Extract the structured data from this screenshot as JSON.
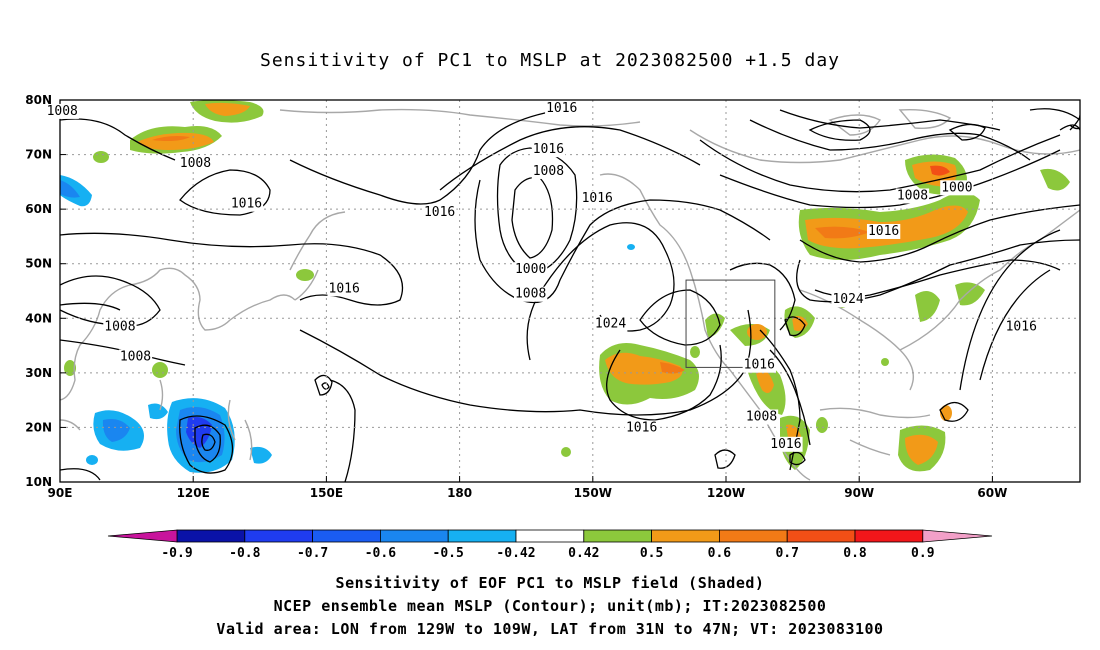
{
  "title": "Sensitivity of PC1 to MSLP at 2023082500 +1.5 day",
  "map": {
    "lat_labels": [
      "80N",
      "70N",
      "60N",
      "50N",
      "40N",
      "30N",
      "20N",
      "10N"
    ],
    "lon_labels": [
      "90E",
      "120E",
      "150E",
      "180",
      "150W",
      "120W",
      "90W",
      "60W"
    ],
    "valid_box_label": "",
    "contour_labels": [
      {
        "text": "1008",
        "lon": 90.5,
        "lat": 78
      },
      {
        "text": "1008",
        "lon": 120.5,
        "lat": 68.5
      },
      {
        "text": "1016",
        "lon": 132,
        "lat": 61
      },
      {
        "text": "1016",
        "lon": 154,
        "lat": 45.5
      },
      {
        "text": "1008",
        "lon": 103.5,
        "lat": 38.5
      },
      {
        "text": "1008",
        "lon": 107,
        "lat": 33
      },
      {
        "text": "1016",
        "lon": -157,
        "lat": 78.5
      },
      {
        "text": "1016",
        "lon": -160,
        "lat": 71
      },
      {
        "text": "1008",
        "lon": -160,
        "lat": 67
      },
      {
        "text": "1016",
        "lon": 175.5,
        "lat": 59.5
      },
      {
        "text": "1016",
        "lon": -149,
        "lat": 62
      },
      {
        "text": "1000",
        "lon": -164,
        "lat": 49
      },
      {
        "text": "1008",
        "lon": -164,
        "lat": 44.5
      },
      {
        "text": "1024",
        "lon": -146,
        "lat": 39
      },
      {
        "text": "1016",
        "lon": -139,
        "lat": 20
      },
      {
        "text": "1016",
        "lon": -112.5,
        "lat": 31.5
      },
      {
        "text": "1008",
        "lon": -112,
        "lat": 22
      },
      {
        "text": "1016",
        "lon": -106.5,
        "lat": 17
      },
      {
        "text": "1008",
        "lon": -78,
        "lat": 62.5
      },
      {
        "text": "1000",
        "lon": -68,
        "lat": 64
      },
      {
        "text": "1016",
        "lon": -84.5,
        "lat": 56
      },
      {
        "text": "1024",
        "lon": -92.5,
        "lat": 43.5
      },
      {
        "text": "1016",
        "lon": -53.5,
        "lat": 38.5
      }
    ]
  },
  "colorbar": {
    "labels": [
      "-0.9",
      "-0.8",
      "-0.7",
      "-0.6",
      "-0.5",
      "-0.42",
      "0.42",
      "0.5",
      "0.6",
      "0.7",
      "0.8",
      "0.9"
    ],
    "colors": [
      "#0a12a8",
      "#1f3cf0",
      "#1a5cf2",
      "#1a86f0",
      "#16b0f2",
      "#ffffff",
      "#8cc83c",
      "#f29a18",
      "#f27a16",
      "#f24f16",
      "#f2161a"
    ],
    "end_low": "#c8149c",
    "end_high": "#f2a0c8"
  },
  "caption": {
    "line1": "Sensitivity of EOF PC1 to MSLP field (Shaded)",
    "line2": "NCEP ensemble mean MSLP (Contour); unit(mb); IT:2023082500",
    "line3": "Valid area: LON from 129W to 109W, LAT from 31N to 47N; VT: 2023083100"
  }
}
